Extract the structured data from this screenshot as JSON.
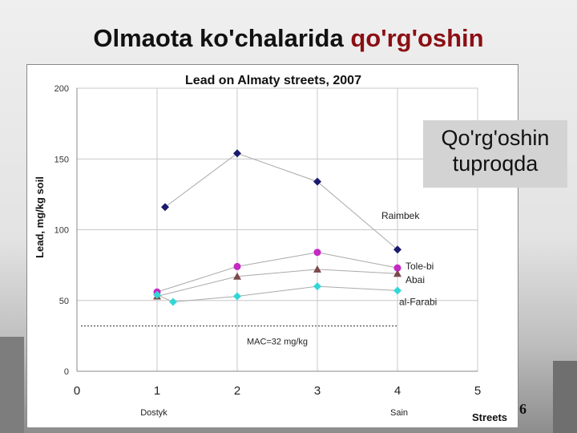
{
  "slide": {
    "title_main": "Olmaota ko'chalarida",
    "title_accent": "qo'rg'oshin",
    "callout_line1": "Qo'rg'oshin",
    "callout_line2": "tuproqda",
    "page_number": "6"
  },
  "colors": {
    "accent": "#8b0f14",
    "Raimbek": "#1a1a6e",
    "Tole-bi": "#c42ac4",
    "Abai": "#7a4a4a",
    "al-Farabi": "#33d6d6",
    "mac_line": "#333333"
  },
  "chart_data": {
    "type": "scatter",
    "title": "Lead on Almaty streets, 2007",
    "xlabel": "Streets",
    "ylabel": "Lead, mg/kg soil",
    "xlim": [
      0,
      5
    ],
    "ylim": [
      0,
      200
    ],
    "x_ticks": [
      0,
      1,
      2,
      3,
      4,
      5
    ],
    "y_ticks": [
      0,
      50,
      100,
      150,
      200
    ],
    "category_labels": [
      {
        "x": 1,
        "label": "Dostyk"
      },
      {
        "x": 4,
        "label": "Sain"
      }
    ],
    "grid": true,
    "series": [
      {
        "name": "Raimbek",
        "marker": "diamond",
        "points": [
          {
            "x": 1.1,
            "y": 116
          },
          {
            "x": 2,
            "y": 154
          },
          {
            "x": 3,
            "y": 134
          },
          {
            "x": 4,
            "y": 86
          }
        ]
      },
      {
        "name": "Tole-bi",
        "marker": "circle",
        "points": [
          {
            "x": 1,
            "y": 56
          },
          {
            "x": 2,
            "y": 74
          },
          {
            "x": 3,
            "y": 84
          },
          {
            "x": 4,
            "y": 73
          }
        ]
      },
      {
        "name": "Abai",
        "marker": "triangle",
        "points": [
          {
            "x": 1,
            "y": 53
          },
          {
            "x": 2,
            "y": 67
          },
          {
            "x": 3,
            "y": 72
          },
          {
            "x": 4,
            "y": 69
          }
        ]
      },
      {
        "name": "al-Farabi",
        "marker": "diamond",
        "points": [
          {
            "x": 1,
            "y": 54
          },
          {
            "x": 1.2,
            "y": 49
          },
          {
            "x": 2,
            "y": 53
          },
          {
            "x": 3,
            "y": 60
          },
          {
            "x": 4,
            "y": 57
          }
        ]
      }
    ],
    "reference_line": {
      "label": "MAC=32 mg/kg",
      "y": 32,
      "x_from": 0,
      "x_to": 4
    }
  }
}
